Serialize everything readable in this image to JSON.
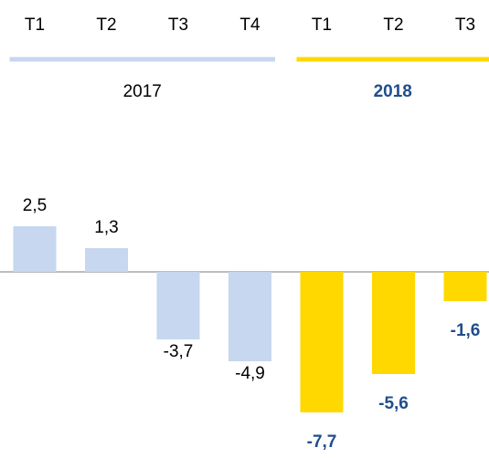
{
  "chart_data": {
    "type": "bar",
    "groups": [
      {
        "label": "2017",
        "color": "#c6d7ef",
        "label_color": "#000000",
        "label_bold": false,
        "categories": [
          "T1",
          "T2",
          "T3",
          "T4"
        ],
        "values": [
          2.5,
          1.3,
          -3.7,
          -4.9
        ],
        "value_labels": [
          "2,5",
          "1,3",
          "-3,7",
          "-4,9"
        ]
      },
      {
        "label": "2018",
        "color": "#ffd800",
        "label_color": "#1f4e8c",
        "label_bold": true,
        "categories": [
          "T1",
          "T2",
          "T3"
        ],
        "values": [
          -7.7,
          -5.6,
          -1.6
        ],
        "value_labels": [
          "-7,7",
          "-5,6",
          "-1,6"
        ]
      }
    ]
  }
}
